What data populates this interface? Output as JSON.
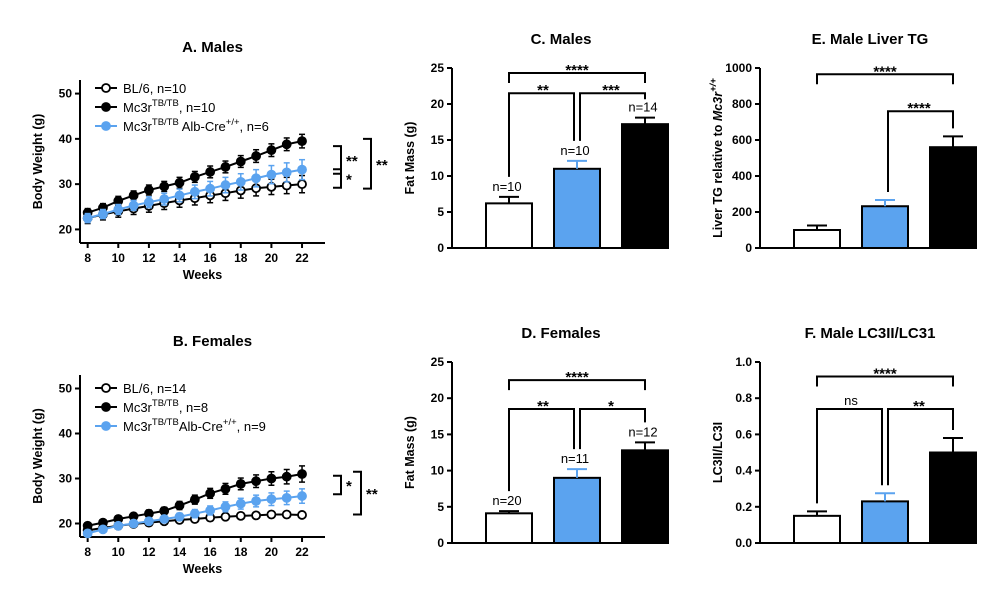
{
  "chart_data": [
    {
      "id": "A",
      "type": "line",
      "title": "A. Males",
      "xlabel": "Weeks",
      "ylabel": "Body Weight (g)",
      "xlim": [
        7.5,
        23.5
      ],
      "ylim": [
        17,
        53
      ],
      "xticks": [
        8,
        10,
        12,
        14,
        16,
        18,
        20,
        22
      ],
      "yticks": [
        20,
        30,
        40,
        50
      ],
      "x": [
        8,
        9,
        10,
        11,
        12,
        13,
        14,
        15,
        16,
        17,
        18,
        19,
        20,
        21,
        22
      ],
      "series": [
        {
          "name": "BL/6, n=10",
          "sup": "",
          "suffix": "",
          "marker": "open",
          "color": "#000000",
          "values": [
            22.5,
            23.3,
            24.0,
            24.6,
            25.2,
            25.8,
            26.4,
            26.9,
            27.5,
            28.0,
            28.6,
            29.1,
            29.4,
            29.7,
            30.0
          ],
          "err": [
            1.2,
            1.2,
            1.3,
            1.3,
            1.4,
            1.4,
            1.5,
            1.5,
            1.6,
            1.6,
            1.7,
            1.7,
            1.7,
            1.8,
            1.9
          ]
        },
        {
          "name": "Mc3r",
          "sup": "TB/TB",
          "suffix": ", n=10",
          "marker": "filled",
          "color": "#000000",
          "values": [
            23.7,
            24.8,
            26.3,
            27.5,
            28.7,
            29.5,
            30.3,
            31.6,
            32.7,
            33.8,
            35.0,
            36.2,
            37.5,
            38.8,
            39.5
          ],
          "err": [
            0.9,
            0.9,
            1.0,
            1.0,
            1.1,
            1.1,
            1.2,
            1.2,
            1.3,
            1.3,
            1.3,
            1.4,
            1.4,
            1.4,
            1.5
          ]
        },
        {
          "name": "Mc3r",
          "sup": "TB/TB",
          "suffix": " Alb-Cre",
          "sup2": "+/+",
          "suffix2": ", n=6",
          "marker": "filled",
          "color": "#5BA3EF",
          "values": [
            22.5,
            23.4,
            24.4,
            25.3,
            26.0,
            26.7,
            27.5,
            28.3,
            29.0,
            29.8,
            30.5,
            31.3,
            32.1,
            32.6,
            33.2
          ],
          "err": [
            1.0,
            1.0,
            1.1,
            1.1,
            1.2,
            1.3,
            1.4,
            1.5,
            1.6,
            1.7,
            1.8,
            1.9,
            2.0,
            2.1,
            2.2
          ]
        }
      ],
      "annotations": [
        "**",
        "*",
        "**"
      ]
    },
    {
      "id": "B",
      "type": "line",
      "title": "B. Females",
      "xlabel": "Weeks",
      "ylabel": "Body Weight (g)",
      "xlim": [
        7.5,
        23.5
      ],
      "ylim": [
        17,
        53
      ],
      "xticks": [
        8,
        10,
        12,
        14,
        16,
        18,
        20,
        22
      ],
      "yticks": [
        20,
        30,
        40,
        50
      ],
      "x": [
        8,
        9,
        10,
        11,
        12,
        13,
        14,
        15,
        16,
        17,
        18,
        19,
        20,
        21,
        22
      ],
      "series": [
        {
          "name": "BL/6, n=14",
          "sup": "",
          "suffix": "",
          "marker": "open",
          "color": "#000000",
          "values": [
            18.5,
            19.0,
            19.5,
            19.9,
            20.2,
            20.5,
            20.8,
            21.0,
            21.3,
            21.5,
            21.7,
            21.8,
            22.0,
            22.0,
            21.9
          ],
          "err": [
            0.4,
            0.4,
            0.4,
            0.4,
            0.4,
            0.4,
            0.4,
            0.4,
            0.4,
            0.4,
            0.4,
            0.4,
            0.4,
            0.4,
            0.4
          ]
        },
        {
          "name": "Mc3r",
          "sup": "TB/TB",
          "suffix": ", n=8",
          "marker": "filled",
          "color": "#000000",
          "values": [
            19.5,
            20.2,
            21.0,
            21.6,
            22.2,
            22.8,
            24.0,
            25.3,
            26.7,
            27.7,
            28.8,
            29.4,
            30.0,
            30.4,
            31.0
          ],
          "err": [
            0.6,
            0.6,
            0.7,
            0.7,
            0.8,
            0.8,
            0.9,
            1.0,
            1.1,
            1.2,
            1.3,
            1.4,
            1.5,
            1.6,
            1.8
          ]
        },
        {
          "name": "Mc3r",
          "sup": "TB/TB",
          "suffix": "Alb-Cre",
          "sup2": "+/+",
          "suffix2": ", n=9",
          "marker": "filled",
          "color": "#5BA3EF",
          "values": [
            17.8,
            18.7,
            19.5,
            20.0,
            20.5,
            21.0,
            21.5,
            22.2,
            22.9,
            23.7,
            24.4,
            25.0,
            25.4,
            25.7,
            26.1
          ],
          "err": [
            0.5,
            0.5,
            0.6,
            0.6,
            0.7,
            0.7,
            0.8,
            0.9,
            1.0,
            1.1,
            1.2,
            1.3,
            1.4,
            1.5,
            1.6
          ]
        }
      ],
      "annotations": [
        "*",
        "**"
      ]
    },
    {
      "id": "C",
      "type": "bar",
      "title": "C. Males",
      "xlabel": "",
      "ylabel": "Fat Mass (g)",
      "ylim": [
        0,
        25
      ],
      "yticks": [
        0,
        5,
        10,
        15,
        20,
        25
      ],
      "values": [
        6.2,
        11.0,
        17.2
      ],
      "err": [
        0.9,
        1.1,
        0.9
      ],
      "colors": [
        "#FFFFFF",
        "#5BA3EF",
        "#000000"
      ],
      "labels": [
        "n=10",
        "n=10",
        "n=14"
      ],
      "brackets": [
        {
          "from": 0,
          "to": 1,
          "y": 21.5,
          "text": "**"
        },
        {
          "from": 1,
          "to": 2,
          "y": 21.5,
          "text": "***"
        },
        {
          "from": 0,
          "to": 2,
          "y": 24.3,
          "text": "****"
        }
      ]
    },
    {
      "id": "D",
      "type": "bar",
      "title": "D. Females",
      "xlabel": "",
      "ylabel": "Fat Mass (g)",
      "ylim": [
        0,
        25
      ],
      "yticks": [
        0,
        5,
        10,
        15,
        20,
        25
      ],
      "values": [
        4.1,
        9.0,
        12.8
      ],
      "err": [
        0.3,
        1.2,
        1.1
      ],
      "colors": [
        "#FFFFFF",
        "#5BA3EF",
        "#000000"
      ],
      "labels": [
        "n=20",
        "n=11",
        "n=12"
      ],
      "brackets": [
        {
          "from": 0,
          "to": 1,
          "y": 18.5,
          "text": "**"
        },
        {
          "from": 1,
          "to": 2,
          "y": 18.5,
          "text": "*"
        },
        {
          "from": 0,
          "to": 2,
          "y": 22.5,
          "text": "****"
        }
      ]
    },
    {
      "id": "E",
      "type": "bar",
      "title": "E.  Male Liver TG",
      "xlabel": "",
      "ylabel": "Liver TG relative to ",
      "ylabel_italic": "Mc3r",
      "ylabel_sup": "+/+",
      "ylim": [
        0,
        1000
      ],
      "yticks": [
        0,
        200,
        400,
        600,
        800,
        1000
      ],
      "values": [
        100,
        232,
        560
      ],
      "err": [
        25,
        35,
        60
      ],
      "colors": [
        "#FFFFFF",
        "#5BA3EF",
        "#000000"
      ],
      "labels": [
        "",
        "",
        ""
      ],
      "brackets": [
        {
          "from": 1,
          "to": 2,
          "y": 760,
          "text": "****"
        },
        {
          "from": 0,
          "to": 2,
          "y": 965,
          "text": "****"
        }
      ]
    },
    {
      "id": "F",
      "type": "bar",
      "title": "F. Male LC3II/LC31",
      "xlabel": "",
      "ylabel": "LC3II/LC3I",
      "ylim": [
        0,
        1.0
      ],
      "yticks": [
        0.0,
        0.2,
        0.4,
        0.6,
        0.8,
        1.0
      ],
      "values": [
        0.15,
        0.23,
        0.5
      ],
      "err": [
        0.025,
        0.045,
        0.08
      ],
      "colors": [
        "#FFFFFF",
        "#5BA3EF",
        "#000000"
      ],
      "labels": [
        "",
        "",
        ""
      ],
      "brackets": [
        {
          "from": 0,
          "to": 1,
          "y": 0.74,
          "text": "ns"
        },
        {
          "from": 1,
          "to": 2,
          "y": 0.74,
          "text": "**"
        },
        {
          "from": 0,
          "to": 2,
          "y": 0.92,
          "text": "****"
        }
      ]
    }
  ]
}
